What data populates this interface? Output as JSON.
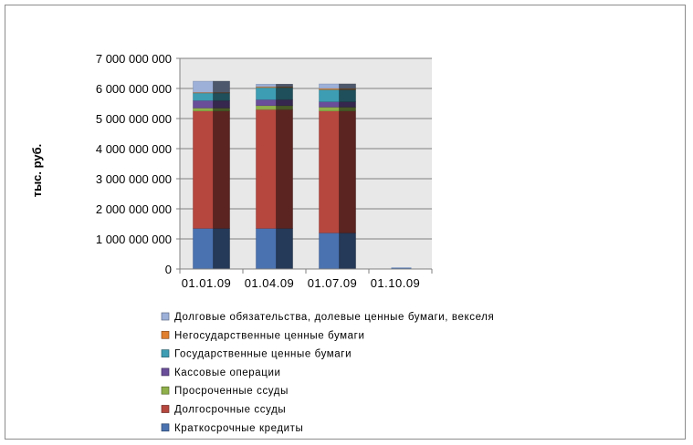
{
  "chart_data": {
    "type": "bar",
    "stacked": true,
    "style": "3d-bar",
    "ylabel": "тыс. руб.",
    "xlabel": "",
    "ylim": [
      0,
      7000000000
    ],
    "yticks": [
      0,
      1000000000,
      2000000000,
      3000000000,
      4000000000,
      5000000000,
      6000000000,
      7000000000
    ],
    "ytick_labels": [
      "0",
      "1 000 000 000",
      "2 000 000 000",
      "3 000 000 000",
      "4 000 000 000",
      "5 000 000 000",
      "6 000 000 000",
      "7 000 000 000"
    ],
    "grid": true,
    "legend_position": "bottom",
    "categories": [
      "01.01.09",
      "01.04.09",
      "01.07.09",
      "01.10.09"
    ],
    "series": [
      {
        "name": "Краткосрочные кредиты",
        "color": "#4a72b0",
        "values": [
          1350000000,
          1350000000,
          1200000000,
          0
        ]
      },
      {
        "name": "Долгосрочные ссуды",
        "color": "#b5473f",
        "values": [
          3900000000,
          3950000000,
          4050000000,
          0
        ]
      },
      {
        "name": "Просроченные ссуды",
        "color": "#8fb04a",
        "values": [
          100000000,
          130000000,
          130000000,
          0
        ]
      },
      {
        "name": "Кассовые операции",
        "color": "#6a4e99",
        "values": [
          250000000,
          200000000,
          180000000,
          0
        ]
      },
      {
        "name": "Государственные ценные бумаги",
        "color": "#3d9db3",
        "values": [
          250000000,
          400000000,
          400000000,
          0
        ]
      },
      {
        "name": "Негосударственные ценные бумаги",
        "color": "#e07f2d",
        "values": [
          20000000,
          30000000,
          40000000,
          0
        ]
      },
      {
        "name": "Долговые обязательства, долевые ценные бумаги, векселя",
        "color": "#9cb0d8",
        "values": [
          370000000,
          80000000,
          150000000,
          0
        ]
      }
    ]
  }
}
